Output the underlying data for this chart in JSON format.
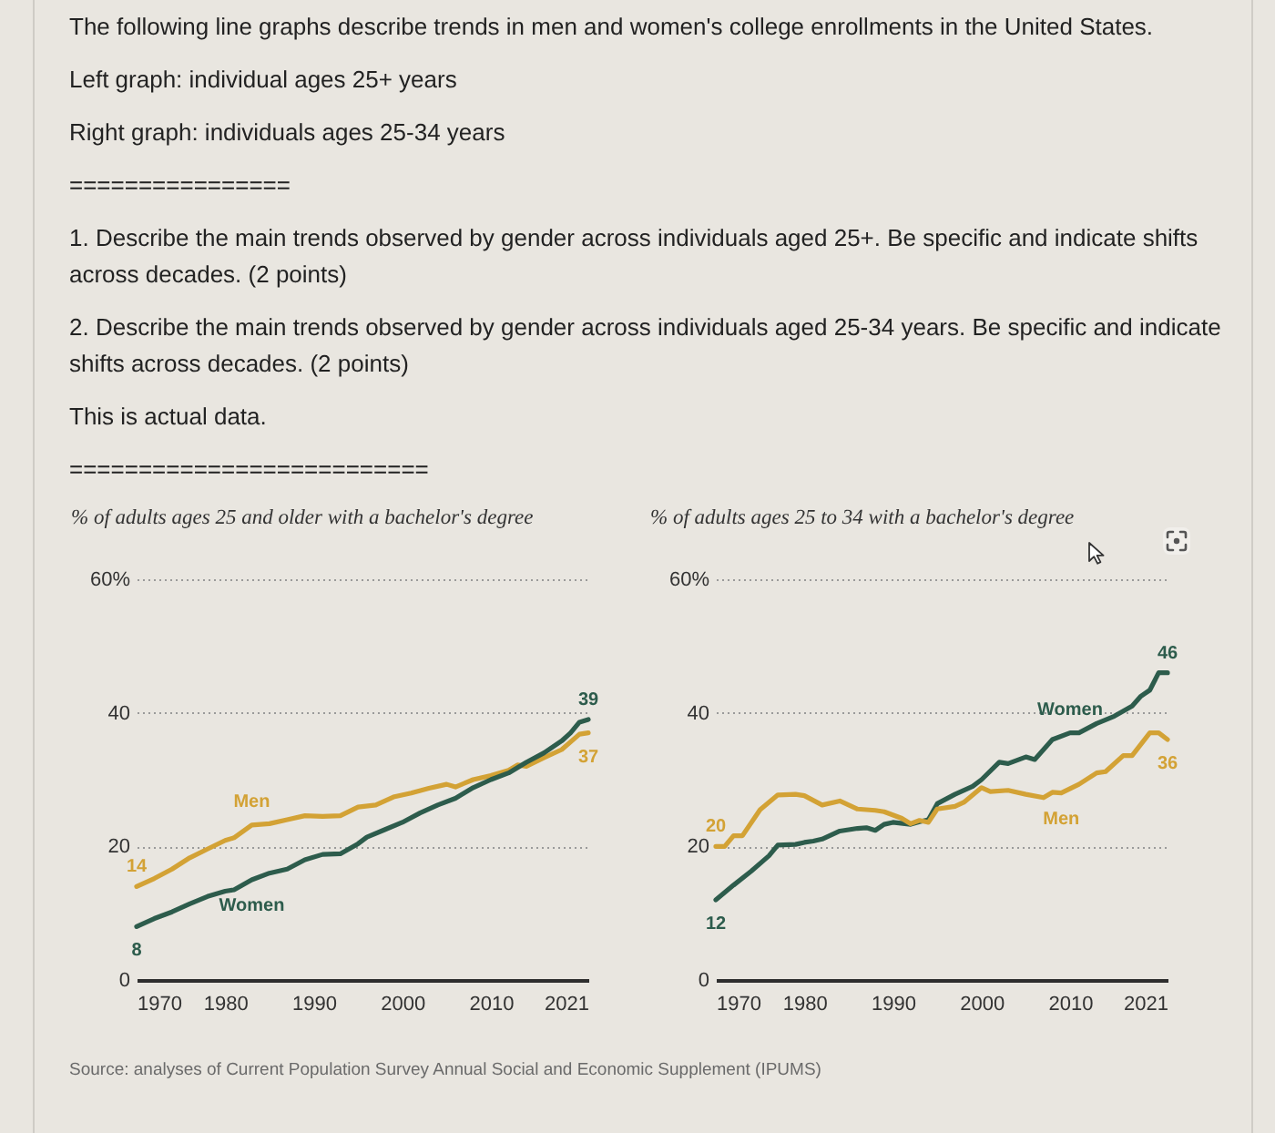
{
  "chart_data": [
    {
      "type": "other",
      "title": "The following line graphs describe trends in men and women's college enrollments in the United States.",
      "annotations": [
        "Left graph: individual ages 25+ years",
        "Right graph: individuals ages 25-34 years",
        "================",
        "1. Describe the main trends observed by gender across individuals aged 25+. Be specific and indicate shifts across decades. (2 points)",
        "2. Describe the main trends observed by gender across individuals aged 25-34 years. Be specific and indicate shifts across decades. (2 points)",
        "This is actual data.",
        "=========================="
      ]
    },
    {
      "type": "line",
      "title": "% of adults ages 25 and older with a bachelor's degree",
      "legend": false,
      "grid": "y",
      "xlim": [
        1970,
        2021
      ],
      "xticks": [
        1970,
        1980,
        1990,
        2000,
        2010,
        2021
      ],
      "ylim": [
        0,
        60
      ],
      "yticks": [
        0,
        20,
        40,
        {
          "value": 60,
          "label": "60%"
        }
      ],
      "series": [
        {
          "name": "Men",
          "color": "#d3a235",
          "x": [
            1970,
            1972,
            1974,
            1976,
            1978,
            1980,
            1981,
            1983,
            1985,
            1987,
            1989,
            1991,
            1993,
            1995,
            1997,
            1999,
            2001,
            2003,
            2005,
            2006,
            2008,
            2010,
            2012,
            2013,
            2014,
            2016,
            2018,
            2020,
            2021
          ],
          "values": [
            14,
            15.2,
            16.6,
            18.3,
            19.6,
            20.9,
            21.3,
            23.2,
            23.4,
            24.0,
            24.6,
            24.5,
            24.6,
            25.9,
            26.2,
            27.4,
            28.0,
            28.7,
            29.3,
            28.9,
            30.0,
            30.6,
            31.4,
            32.2,
            32.0,
            33.3,
            34.5,
            36.8,
            37
          ],
          "value_labels": [
            "14",
            null,
            null,
            null,
            null,
            null,
            null,
            null,
            null,
            null,
            null,
            null,
            null,
            null,
            null,
            null,
            null,
            null,
            null,
            null,
            null,
            null,
            null,
            null,
            null,
            null,
            null,
            null,
            "37"
          ]
        },
        {
          "name": "Women",
          "color": "#2d5c4c",
          "x": [
            1970,
            1972,
            1974,
            1976,
            1978,
            1980,
            1981,
            1983,
            1985,
            1987,
            1989,
            1991,
            1993,
            1995,
            1996,
            1998,
            2000,
            2002,
            2004,
            2006,
            2008,
            2010,
            2012,
            2014,
            2016,
            2018,
            2019,
            2020,
            2021
          ],
          "values": [
            8,
            9.2,
            10.2,
            11.4,
            12.5,
            13.3,
            13.5,
            15.0,
            16.0,
            16.6,
            18.0,
            18.8,
            18.9,
            20.4,
            21.4,
            22.5,
            23.6,
            25.0,
            26.2,
            27.2,
            28.8,
            30.0,
            31.0,
            32.6,
            34.0,
            35.8,
            37.0,
            38.6,
            39
          ],
          "value_labels": [
            "8",
            null,
            null,
            null,
            null,
            null,
            null,
            null,
            null,
            null,
            null,
            null,
            null,
            null,
            null,
            null,
            null,
            null,
            null,
            null,
            null,
            null,
            null,
            null,
            null,
            null,
            null,
            null,
            "39"
          ]
        }
      ]
    },
    {
      "type": "line",
      "title": "% of adults ages 25 to 34 with a bachelor's degree",
      "legend": false,
      "grid": "y",
      "xlim": [
        1970,
        2021
      ],
      "xticks": [
        1970,
        1980,
        1990,
        2000,
        2010,
        2021
      ],
      "ylim": [
        0,
        60
      ],
      "yticks": [
        0,
        20,
        40,
        {
          "value": 60,
          "label": "60%"
        }
      ],
      "series": [
        {
          "name": "Women",
          "color": "#2d5c4c",
          "x": [
            1970,
            1972,
            1974,
            1976,
            1977,
            1979,
            1980,
            1981,
            1982,
            1984,
            1986,
            1987,
            1988,
            1989,
            1990,
            1992,
            1993,
            1994,
            1995,
            1997,
            1999,
            2000,
            2002,
            2003,
            2005,
            2006,
            2008,
            2010,
            2011,
            2013,
            2015,
            2017,
            2018,
            2019,
            2020,
            2021
          ],
          "values": [
            12,
            14.2,
            16.3,
            18.6,
            20.2,
            20.3,
            20.6,
            20.8,
            21.1,
            22.3,
            22.7,
            22.8,
            22.4,
            23.3,
            23.6,
            23.3,
            23.7,
            24.0,
            26.4,
            27.8,
            29.0,
            30.0,
            32.6,
            32.4,
            33.4,
            33.0,
            36.0,
            37.0,
            37.0,
            38.4,
            39.5,
            41.0,
            42.5,
            43.4,
            46.0,
            46
          ],
          "value_labels": [
            "12",
            null,
            null,
            null,
            null,
            null,
            null,
            null,
            null,
            null,
            null,
            null,
            null,
            null,
            null,
            null,
            null,
            null,
            null,
            null,
            null,
            null,
            null,
            null,
            null,
            null,
            null,
            null,
            null,
            null,
            null,
            null,
            null,
            null,
            null,
            "46"
          ]
        },
        {
          "name": "Men",
          "color": "#d3a235",
          "x": [
            1970,
            1971,
            1972,
            1973,
            1975,
            1977,
            1979,
            1980,
            1982,
            1984,
            1986,
            1988,
            1989,
            1991,
            1992,
            1993,
            1994,
            1995,
            1997,
            1998,
            2000,
            2001,
            2003,
            2005,
            2007,
            2008,
            2009,
            2011,
            2013,
            2014,
            2016,
            2017,
            2019,
            2020,
            2021
          ],
          "values": [
            20,
            20.0,
            21.6,
            21.6,
            25.5,
            27.7,
            27.8,
            27.6,
            26.2,
            26.8,
            25.6,
            25.4,
            25.2,
            24.2,
            23.4,
            23.9,
            23.6,
            25.6,
            26.0,
            26.6,
            28.8,
            28.2,
            28.4,
            27.8,
            27.3,
            28.1,
            28.0,
            29.3,
            31.0,
            31.2,
            33.6,
            33.6,
            37.0,
            37.0,
            36
          ],
          "value_labels": [
            "20",
            null,
            null,
            null,
            null,
            null,
            null,
            null,
            null,
            null,
            null,
            null,
            null,
            null,
            null,
            null,
            null,
            null,
            null,
            null,
            null,
            null,
            null,
            null,
            null,
            null,
            null,
            null,
            null,
            null,
            null,
            null,
            null,
            null,
            "36"
          ]
        }
      ]
    },
    {
      "type": "other",
      "annotations": [
        "Source: analyses of Current Population Survey Annual Social and Economic Supplement (IPUMS)"
      ]
    }
  ]
}
